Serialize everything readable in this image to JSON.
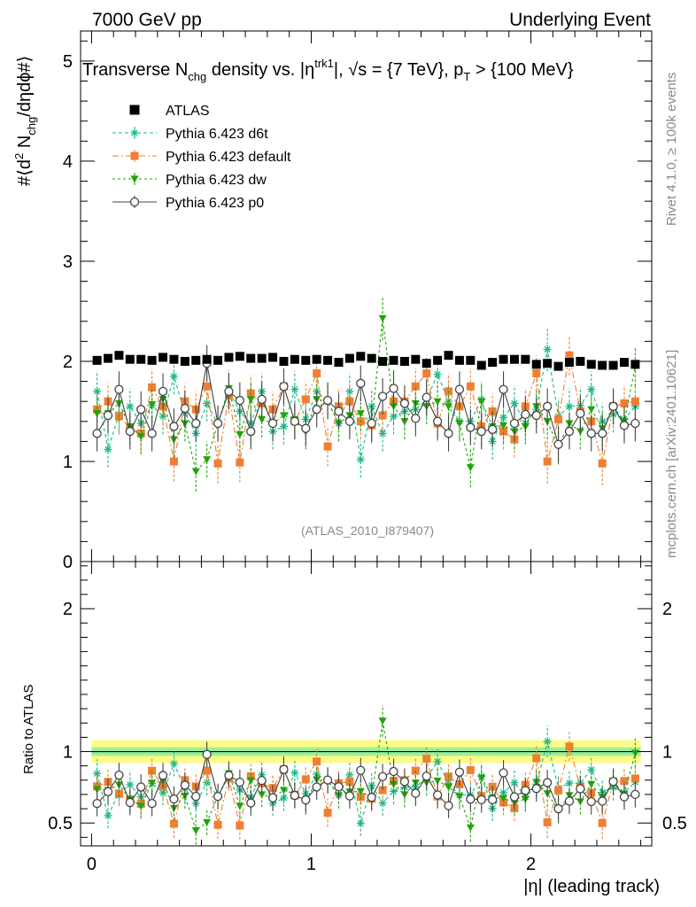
{
  "header": {
    "left": "7000 GeV pp",
    "right": "Underlying Event"
  },
  "side": {
    "rivet": "Rivet 4.1.0, ≥ 100k events",
    "source": "mcplots.cern.ch [arXiv:2401.10621]"
  },
  "chart_data": {
    "type": "scatter",
    "title": "Transverse N_chg density vs. η^trk1, √s = {7 TeV}, p_T > {100 MeV}",
    "title_parts": {
      "a": "Transverse N",
      "a_sub": "chg",
      "b": " density vs. ",
      "eta": "η",
      "eta_sup": "trk1",
      "c": ", ",
      "sqrt": "√",
      "d": "s = {7 TeV}, p",
      "d_sub": "T",
      "e": " > {100 MeV}"
    },
    "watermark": "(ATLAS_2010_I879407)",
    "ylabel_top": "#⟨d² N_chg/dηdϕ#⟩",
    "ylabel_parts": {
      "a": "#⟨d",
      "sup": "2",
      "b": " N",
      "sub": "chg",
      "c": "/dηdϕ#⟩"
    },
    "ylabel_bottom": "Ratio to ATLAS",
    "xlabel": "|η| (leading track)",
    "xlim": [
      -0.05,
      2.55
    ],
    "ylim_top": [
      0,
      5.3
    ],
    "ylim_bottom": [
      0.34,
      2.33
    ],
    "xticks": [
      {
        "v": 0,
        "label": "0"
      },
      {
        "v": 1,
        "label": "1"
      },
      {
        "v": 2,
        "label": "2"
      }
    ],
    "yticks_top": [
      {
        "v": 0,
        "label": "0"
      },
      {
        "v": 1,
        "label": "1"
      },
      {
        "v": 2,
        "label": "2"
      },
      {
        "v": 3,
        "label": "3"
      },
      {
        "v": 4,
        "label": "4"
      },
      {
        "v": 5,
        "label": "5"
      }
    ],
    "yticks_bottom": [
      {
        "v": 0.5,
        "label": "0.5"
      },
      {
        "v": 1,
        "label": "1"
      },
      {
        "v": 2,
        "label": "2"
      }
    ],
    "x": [
      0.025,
      0.075,
      0.125,
      0.175,
      0.225,
      0.275,
      0.325,
      0.375,
      0.425,
      0.475,
      0.525,
      0.575,
      0.625,
      0.675,
      0.725,
      0.775,
      0.825,
      0.875,
      0.925,
      0.975,
      1.025,
      1.075,
      1.125,
      1.175,
      1.225,
      1.275,
      1.325,
      1.375,
      1.425,
      1.475,
      1.525,
      1.575,
      1.625,
      1.675,
      1.725,
      1.775,
      1.825,
      1.875,
      1.925,
      1.975,
      2.025,
      2.075,
      2.125,
      2.175,
      2.225,
      2.275,
      2.325,
      2.375,
      2.425,
      2.475
    ],
    "reference": {
      "name": "ATLAS",
      "color": "#000000",
      "values": [
        2.01,
        2.03,
        2.06,
        2.02,
        2.02,
        2.01,
        2.04,
        2.02,
        2.0,
        2.01,
        2.02,
        2.01,
        2.04,
        2.05,
        2.03,
        2.03,
        2.04,
        2.0,
        2.02,
        2.01,
        2.02,
        2.01,
        1.99,
        2.03,
        2.05,
        2.03,
        2.0,
        2.01,
        2.0,
        2.02,
        1.98,
        2.01,
        2.06,
        2.01,
        2.01,
        1.96,
        1.99,
        2.02,
        2.02,
        2.02,
        1.97,
        1.98,
        1.95,
        1.99,
        2.0,
        1.97,
        1.96,
        1.96,
        1.99,
        1.97
      ],
      "band_stat": 0.03,
      "band_total": 0.08
    },
    "series": [
      {
        "name": "Pythia 6.423 d6t",
        "color": "#1ab98a",
        "marker": "star",
        "dash": "4,3",
        "values": [
          1.7,
          1.12,
          1.47,
          1.55,
          1.38,
          1.56,
          1.45,
          1.85,
          1.48,
          1.28,
          1.58,
          1.38,
          1.7,
          1.5,
          1.38,
          1.7,
          1.3,
          1.35,
          1.72,
          1.42,
          1.7,
          1.6,
          1.38,
          1.7,
          1.02,
          1.55,
          1.28,
          1.45,
          1.5,
          1.52,
          1.62,
          1.87,
          1.6,
          1.4,
          1.4,
          1.62,
          1.2,
          1.44,
          1.58,
          1.38,
          1.52,
          2.12,
          1.45,
          1.55,
          1.56,
          1.72,
          1.4,
          1.47,
          1.42,
          1.55
        ],
        "errors": [
          0.2,
          0.18,
          0.18,
          0.18,
          0.18,
          0.18,
          0.18,
          0.18,
          0.18,
          0.18,
          0.18,
          0.18,
          0.18,
          0.18,
          0.18,
          0.18,
          0.18,
          0.18,
          0.18,
          0.18,
          0.18,
          0.18,
          0.18,
          0.18,
          0.18,
          0.18,
          0.18,
          0.18,
          0.18,
          0.18,
          0.18,
          0.18,
          0.18,
          0.18,
          0.18,
          0.18,
          0.18,
          0.18,
          0.18,
          0.18,
          0.18,
          0.22,
          0.18,
          0.18,
          0.18,
          0.18,
          0.18,
          0.18,
          0.18,
          0.18
        ]
      },
      {
        "name": "Pythia 6.423 default",
        "color": "#ee7f33",
        "marker": "square",
        "dash": "7,3,2,3",
        "values": [
          1.52,
          1.6,
          1.45,
          1.34,
          1.28,
          1.74,
          1.55,
          1.0,
          1.6,
          1.52,
          1.75,
          0.98,
          1.66,
          0.99,
          1.68,
          1.58,
          1.52,
          1.75,
          1.4,
          1.62,
          1.88,
          1.15,
          1.55,
          1.6,
          1.4,
          1.36,
          1.46,
          1.6,
          1.6,
          1.75,
          1.88,
          1.38,
          1.7,
          1.55,
          1.75,
          1.35,
          1.5,
          1.3,
          1.22,
          1.55,
          1.88,
          1.0,
          1.42,
          2.06,
          1.5,
          1.4,
          0.98,
          1.55,
          1.58,
          1.6
        ],
        "errors": [
          0.18,
          0.18,
          0.18,
          0.18,
          0.18,
          0.18,
          0.18,
          0.2,
          0.18,
          0.18,
          0.18,
          0.2,
          0.18,
          0.2,
          0.18,
          0.18,
          0.18,
          0.18,
          0.18,
          0.18,
          0.18,
          0.2,
          0.18,
          0.18,
          0.18,
          0.18,
          0.18,
          0.18,
          0.18,
          0.18,
          0.18,
          0.18,
          0.18,
          0.18,
          0.18,
          0.18,
          0.18,
          0.18,
          0.18,
          0.18,
          0.18,
          0.22,
          0.18,
          0.2,
          0.18,
          0.18,
          0.22,
          0.18,
          0.18,
          0.18
        ]
      },
      {
        "name": "Pythia 6.423 dw",
        "color": "#22a30a",
        "marker": "triangle-down",
        "dash": "3,3",
        "values": [
          1.48,
          1.48,
          1.58,
          1.35,
          1.25,
          1.57,
          1.62,
          1.22,
          1.38,
          0.9,
          1.02,
          1.38,
          1.73,
          1.27,
          1.62,
          1.42,
          1.38,
          1.46,
          1.42,
          1.3,
          1.62,
          1.6,
          1.38,
          1.46,
          1.48,
          1.38,
          2.43,
          1.55,
          1.4,
          1.58,
          1.55,
          1.6,
          1.55,
          1.38,
          0.94,
          1.6,
          1.35,
          1.36,
          1.3,
          1.35,
          1.55,
          1.4,
          1.15,
          1.38,
          1.3,
          1.52,
          1.33,
          1.55,
          1.4,
          1.95
        ],
        "errors": [
          0.18,
          0.18,
          0.18,
          0.18,
          0.18,
          0.18,
          0.18,
          0.18,
          0.18,
          0.2,
          0.18,
          0.18,
          0.18,
          0.18,
          0.18,
          0.18,
          0.18,
          0.18,
          0.18,
          0.18,
          0.18,
          0.18,
          0.18,
          0.18,
          0.18,
          0.18,
          0.22,
          0.18,
          0.18,
          0.18,
          0.18,
          0.18,
          0.18,
          0.18,
          0.2,
          0.18,
          0.18,
          0.18,
          0.18,
          0.18,
          0.18,
          0.18,
          0.18,
          0.18,
          0.18,
          0.18,
          0.18,
          0.18,
          0.18,
          0.2
        ]
      },
      {
        "name": "Pythia 6.423 p0",
        "color": "#444444",
        "marker": "circle-open",
        "dash": "",
        "values": [
          1.28,
          1.46,
          1.72,
          1.3,
          1.52,
          1.28,
          1.7,
          1.35,
          1.53,
          1.38,
          1.98,
          1.38,
          1.7,
          1.61,
          1.3,
          1.62,
          1.38,
          1.75,
          1.4,
          1.33,
          1.52,
          1.61,
          1.5,
          1.4,
          1.78,
          1.38,
          1.65,
          1.73,
          1.58,
          1.43,
          1.64,
          1.4,
          1.28,
          1.72,
          1.34,
          1.3,
          1.32,
          1.72,
          1.38,
          1.47,
          1.46,
          1.55,
          1.17,
          1.3,
          1.48,
          1.28,
          1.28,
          1.55,
          1.36,
          1.38
        ],
        "errors": [
          0.18,
          0.18,
          0.18,
          0.18,
          0.18,
          0.18,
          0.18,
          0.18,
          0.18,
          0.18,
          0.18,
          0.18,
          0.18,
          0.18,
          0.18,
          0.18,
          0.18,
          0.18,
          0.18,
          0.18,
          0.18,
          0.18,
          0.18,
          0.18,
          0.18,
          0.18,
          0.18,
          0.18,
          0.18,
          0.18,
          0.18,
          0.18,
          0.18,
          0.18,
          0.18,
          0.18,
          0.18,
          0.18,
          0.18,
          0.18,
          0.18,
          0.18,
          0.18,
          0.18,
          0.18,
          0.18,
          0.18,
          0.18,
          0.18,
          0.18
        ]
      }
    ]
  }
}
